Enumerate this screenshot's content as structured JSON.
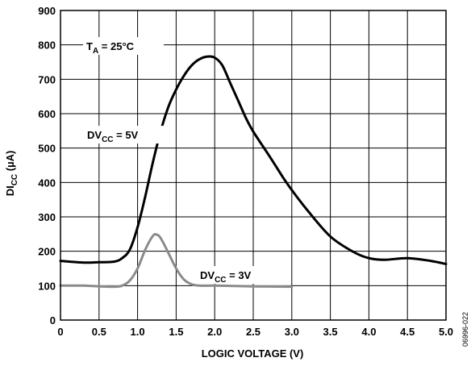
{
  "chart_data": {
    "type": "line",
    "title": "",
    "xlabel": "LOGIC VOLTAGE (V)",
    "ylabel": {
      "main": "DI",
      "sub": "CC",
      "rest": " (µA)"
    },
    "xlim": [
      0,
      5.0
    ],
    "ylim": [
      0,
      900
    ],
    "x_ticks": [
      {
        "value": 0,
        "label": "0"
      },
      {
        "value": 0.5,
        "label": "0.5"
      },
      {
        "value": 1.0,
        "label": "1.0"
      },
      {
        "value": 1.5,
        "label": "1.5"
      },
      {
        "value": 2.0,
        "label": "2.0"
      },
      {
        "value": 2.5,
        "label": "2.5"
      },
      {
        "value": 3.0,
        "label": "3.0"
      },
      {
        "value": 3.5,
        "label": "3.5"
      },
      {
        "value": 4.0,
        "label": "4.0"
      },
      {
        "value": 4.5,
        "label": "4.5"
      },
      {
        "value": 5.0,
        "label": "5.0"
      }
    ],
    "y_ticks": [
      {
        "value": 0,
        "label": "0"
      },
      {
        "value": 100,
        "label": "100"
      },
      {
        "value": 200,
        "label": "200"
      },
      {
        "value": 300,
        "label": "300"
      },
      {
        "value": 400,
        "label": "400"
      },
      {
        "value": 500,
        "label": "500"
      },
      {
        "value": 600,
        "label": "600"
      },
      {
        "value": 700,
        "label": "700"
      },
      {
        "value": 800,
        "label": "800"
      },
      {
        "value": 900,
        "label": "900"
      }
    ],
    "grid": true,
    "series": [
      {
        "label": {
          "main": "DV",
          "sub": "CC",
          "rest": " = 5V"
        },
        "color": "#000000",
        "points": [
          [
            0,
            172
          ],
          [
            0.3,
            167
          ],
          [
            0.5,
            168
          ],
          [
            0.7,
            170
          ],
          [
            0.8,
            180
          ],
          [
            0.9,
            205
          ],
          [
            1.0,
            270
          ],
          [
            1.1,
            360
          ],
          [
            1.2,
            460
          ],
          [
            1.3,
            550
          ],
          [
            1.4,
            620
          ],
          [
            1.5,
            670
          ],
          [
            1.6,
            710
          ],
          [
            1.7,
            740
          ],
          [
            1.8,
            758
          ],
          [
            1.9,
            766
          ],
          [
            2.0,
            763
          ],
          [
            2.1,
            740
          ],
          [
            2.2,
            690
          ],
          [
            2.3,
            640
          ],
          [
            2.4,
            590
          ],
          [
            2.5,
            548
          ],
          [
            2.7,
            480
          ],
          [
            2.9,
            410
          ],
          [
            3.0,
            378
          ],
          [
            3.2,
            320
          ],
          [
            3.5,
            243
          ],
          [
            3.8,
            198
          ],
          [
            4.0,
            180
          ],
          [
            4.2,
            175
          ],
          [
            4.5,
            180
          ],
          [
            4.8,
            172
          ],
          [
            5.0,
            163
          ]
        ]
      },
      {
        "label": {
          "main": "DV",
          "sub": "CC",
          "rest": " = 3V"
        },
        "color": "#8a8a8a",
        "points": [
          [
            0,
            100
          ],
          [
            0.3,
            100
          ],
          [
            0.5,
            98
          ],
          [
            0.7,
            97
          ],
          [
            0.8,
            100
          ],
          [
            0.9,
            115
          ],
          [
            1.0,
            150
          ],
          [
            1.1,
            205
          ],
          [
            1.2,
            245
          ],
          [
            1.25,
            248
          ],
          [
            1.3,
            238
          ],
          [
            1.4,
            195
          ],
          [
            1.5,
            150
          ],
          [
            1.6,
            118
          ],
          [
            1.7,
            104
          ],
          [
            1.8,
            100
          ],
          [
            2.0,
            100
          ],
          [
            2.5,
            98
          ],
          [
            3.0,
            97
          ]
        ]
      }
    ],
    "annotations": [
      {
        "main": "T",
        "sub": "A",
        "rest": " = 25°C"
      }
    ]
  },
  "figure_id": "06996-022"
}
